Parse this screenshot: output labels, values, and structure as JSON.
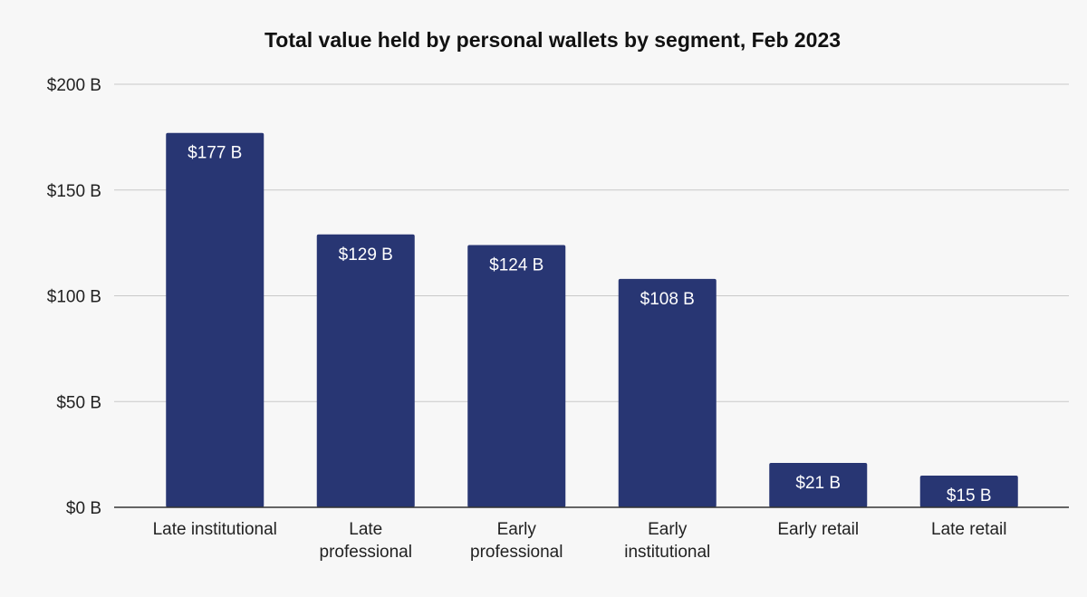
{
  "chart_data": {
    "type": "bar",
    "title": "Total value held by personal wallets by segment, Feb 2023",
    "xlabel": "",
    "ylabel": "",
    "categories": [
      [
        "Late institutional"
      ],
      [
        "Late",
        "professional"
      ],
      [
        "Early",
        "professional"
      ],
      [
        "Early",
        "institutional"
      ],
      [
        "Early retail"
      ],
      [
        "Late retail"
      ]
    ],
    "values": [
      177,
      129,
      124,
      108,
      21,
      15
    ],
    "value_labels": [
      "$177 B",
      "$129 B",
      "$124 B",
      "$108 B",
      "$21 B",
      "$15 B"
    ],
    "ylim": [
      0,
      200
    ],
    "yticks": [
      0,
      50,
      100,
      150,
      200
    ],
    "ytick_labels": [
      "$0 B",
      "$50 B",
      "$100 B",
      "$150 B",
      "$200 B"
    ],
    "grid": true,
    "legend": "none",
    "colors": {
      "bar": "#283673",
      "background": "#f7f7f7",
      "grid": "#c9c9c9",
      "axis": "#333333",
      "label_inside": "#ffffff"
    }
  }
}
